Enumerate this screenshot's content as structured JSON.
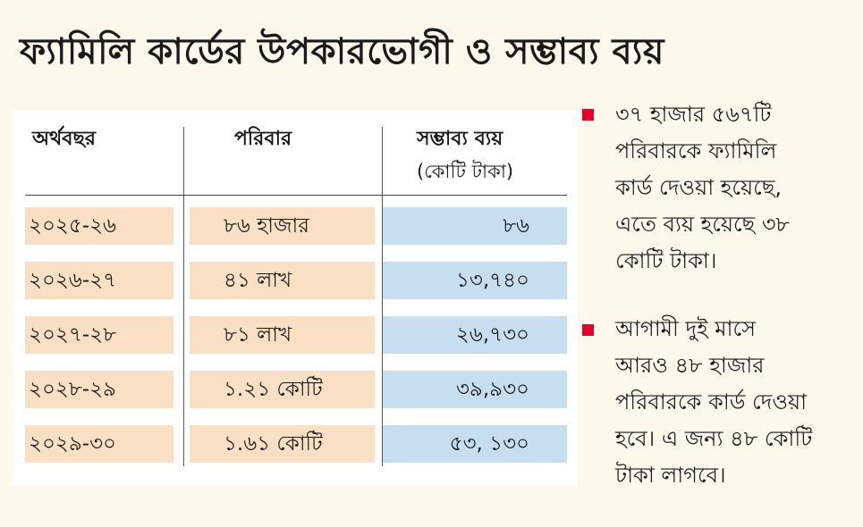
{
  "title": "ফ্যামিলি কার্ডের উপকারভোগী ও সম্ভাব্য ব্যয়",
  "table": {
    "headers": {
      "year": "অর্থবছর",
      "family": "পরিবার",
      "cost": "সম্ভাব্য ব্যয়",
      "cost_unit": "(কোটি টাকা)"
    },
    "rows": [
      {
        "year": "২০২৫-২৬",
        "family": "৮৬ হাজার",
        "cost": "৮৬"
      },
      {
        "year": "২০২৬-২৭",
        "family": "৪১ লাখ",
        "cost": "১৩,৭৪০"
      },
      {
        "year": "২০২৭-২৮",
        "family": "৮১ লাখ",
        "cost": "২৬,৭৩০"
      },
      {
        "year": "২০২৮-২৯",
        "family": "১.২১ কোটি",
        "cost": "৩৯,৯৩০"
      },
      {
        "year": "২০২৯-৩০",
        "family": "১.৬১ কোটি",
        "cost": "৫৩, ১৩০"
      }
    ]
  },
  "notes": [
    {
      "lines": [
        "৩৭ হাজার ৫৬৭টি",
        "পরিবারকে ফ্যামিলি",
        "কার্ড দেওয়া হয়েছে,",
        "এতে ব্যয় হয়েছে ৩৮",
        "কোটি টাকা।"
      ]
    },
    {
      "lines": [
        "আগামী দুই মাসে",
        "আরও ৪৮ হাজার",
        "পরিবারকে কার্ড দেওয়া",
        "হবে। এ জন্য ৪৮ কোটি",
        "টাকা লাগবে।"
      ]
    }
  ],
  "colors": {
    "background": "#fdf7ec",
    "year_family_fill": "#f9e0c4",
    "cost_fill": "#c6def0",
    "bullet": "#e4002b"
  },
  "chart_data": {
    "type": "table",
    "title": "ফ্যামিলি কার্ডের উপকারভোগী ও সম্ভাব্য ব্যয়",
    "columns": [
      "অর্থবছর",
      "পরিবার",
      "সম্ভাব্য ব্যয় (কোটি টাকা)"
    ],
    "rows": [
      [
        "২০২৫-২৬",
        "৮৬ হাজার",
        "৮৬"
      ],
      [
        "২০২৬-২৭",
        "৪১ লাখ",
        "১৩,৭৪০"
      ],
      [
        "২০২৭-২৮",
        "৮১ লাখ",
        "২৬,৭৩০"
      ],
      [
        "২০২৮-২৯",
        "১.২১ কোটি",
        "৩৯,৯৩০"
      ],
      [
        "২০২৯-৩০",
        "১.৬১ কোটি",
        "৫৩, ১৩০"
      ]
    ]
  }
}
